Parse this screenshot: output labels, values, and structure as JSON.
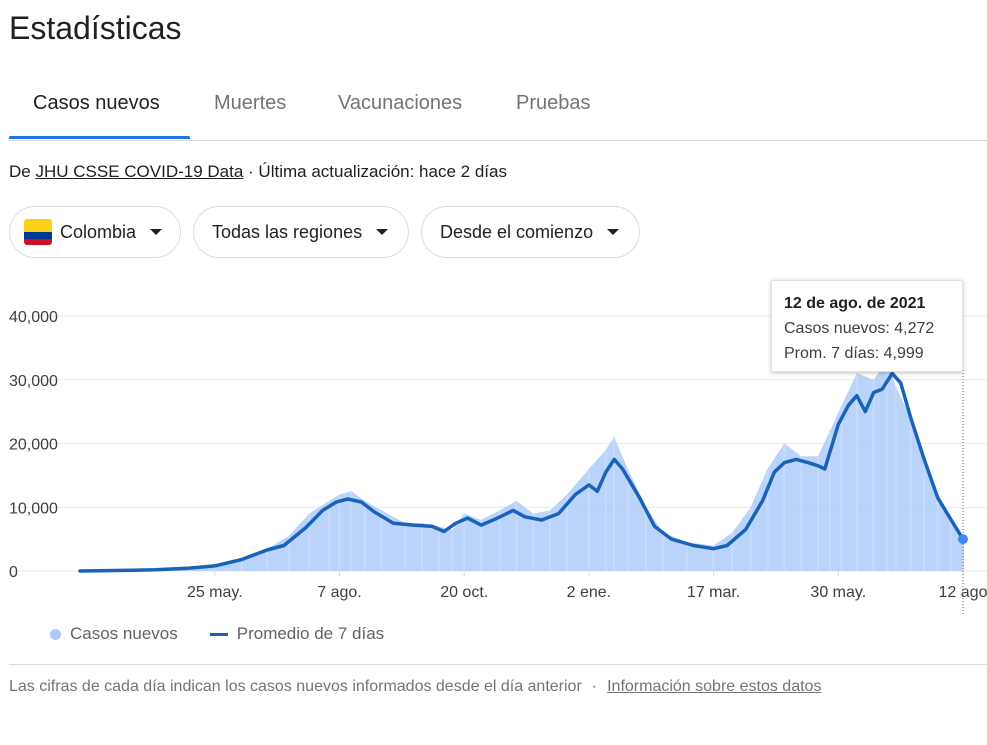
{
  "page": {
    "title": "Estadísticas"
  },
  "tabs": [
    {
      "label": "Casos nuevos",
      "active": true
    },
    {
      "label": "Muertes",
      "active": false
    },
    {
      "label": "Vacunaciones",
      "active": false
    },
    {
      "label": "Pruebas",
      "active": false
    }
  ],
  "source": {
    "prefix": "De",
    "link": "JHU CSSE COVID-19 Data",
    "updated": "· Última actualización: hace 2 días"
  },
  "filters": {
    "country": "Colombia",
    "country_flag_colors": [
      "#fcd116",
      "#003893",
      "#ce1126"
    ],
    "region": "Todas las regiones",
    "period": "Desde el comienzo"
  },
  "colors": {
    "bars": "#aecbfa",
    "area": "#aecbfa",
    "line": "#1a62b8",
    "accent": "#1a73e8"
  },
  "tooltip": {
    "title": "12 de ago. de 2021",
    "new_cases": "Casos nuevos: 4,272",
    "avg": "Prom. 7 días: 4,999"
  },
  "legend": {
    "bars": "Casos nuevos",
    "line": "Promedio de 7 días"
  },
  "footer": {
    "note": "Las cifras de cada día indican los casos nuevos informados desde el día anterior",
    "separator": "·",
    "link": "Información sobre estos datos"
  },
  "chart_data": {
    "type": "bar",
    "x_start": "2020-03-06",
    "x_end": "2021-08-12",
    "ylim": [
      0,
      40000
    ],
    "yticks": [
      0,
      10000,
      20000,
      30000,
      40000
    ],
    "ytick_labels": [
      "0",
      "10,000",
      "20,000",
      "30,000",
      "40,000"
    ],
    "xticks": [
      "2020-05-25",
      "2020-08-07",
      "2020-10-20",
      "2021-01-02",
      "2021-03-17",
      "2021-05-30",
      "2021-08-12"
    ],
    "xtick_labels": [
      "25 may.",
      "7 ago.",
      "20 oct.",
      "2 ene.",
      "17 mar.",
      "30 may.",
      "12 ago"
    ],
    "grid": true,
    "legend_position": "bottom-left",
    "highlight": {
      "x": "2021-08-12",
      "new_cases": 4272,
      "avg": 4999
    },
    "series": [
      {
        "name": "Casos nuevos",
        "kind": "bar",
        "points": [
          [
            "2020-03-06",
            0
          ],
          [
            "2020-04-01",
            120
          ],
          [
            "2020-04-20",
            250
          ],
          [
            "2020-05-10",
            500
          ],
          [
            "2020-05-25",
            900
          ],
          [
            "2020-06-10",
            2000
          ],
          [
            "2020-06-25",
            3500
          ],
          [
            "2020-07-08",
            5500
          ],
          [
            "2020-07-20",
            9000
          ],
          [
            "2020-08-01",
            11000
          ],
          [
            "2020-08-07",
            12000
          ],
          [
            "2020-08-14",
            12500
          ],
          [
            "2020-08-22",
            11000
          ],
          [
            "2020-09-01",
            9500
          ],
          [
            "2020-09-15",
            7500
          ],
          [
            "2020-09-25",
            7500
          ],
          [
            "2020-10-05",
            7000
          ],
          [
            "2020-10-13",
            6500
          ],
          [
            "2020-10-20",
            9000
          ],
          [
            "2020-10-30",
            8000
          ],
          [
            "2020-11-10",
            9500
          ],
          [
            "2020-11-20",
            11000
          ],
          [
            "2020-11-30",
            9000
          ],
          [
            "2020-12-10",
            9500
          ],
          [
            "2020-12-20",
            12000
          ],
          [
            "2021-01-02",
            16000
          ],
          [
            "2021-01-12",
            19000
          ],
          [
            "2021-01-17",
            21000
          ],
          [
            "2021-01-25",
            16000
          ],
          [
            "2021-02-05",
            10000
          ],
          [
            "2021-02-15",
            6000
          ],
          [
            "2021-03-01",
            4500
          ],
          [
            "2021-03-17",
            4000
          ],
          [
            "2021-03-28",
            6000
          ],
          [
            "2021-04-08",
            10000
          ],
          [
            "2021-04-18",
            16000
          ],
          [
            "2021-04-28",
            20000
          ],
          [
            "2021-05-08",
            18000
          ],
          [
            "2021-05-18",
            18000
          ],
          [
            "2021-05-25",
            22000
          ],
          [
            "2021-06-01",
            26000
          ],
          [
            "2021-06-10",
            31000
          ],
          [
            "2021-06-20",
            30000
          ],
          [
            "2021-06-28",
            33000
          ],
          [
            "2021-07-03",
            29000
          ],
          [
            "2021-07-12",
            24000
          ],
          [
            "2021-07-20",
            18000
          ],
          [
            "2021-07-28",
            12000
          ],
          [
            "2021-08-05",
            8000
          ],
          [
            "2021-08-12",
            4272
          ]
        ]
      },
      {
        "name": "Promedio de 7 días",
        "kind": "line",
        "points": [
          [
            "2020-03-06",
            0
          ],
          [
            "2020-04-01",
            100
          ],
          [
            "2020-04-20",
            200
          ],
          [
            "2020-05-10",
            450
          ],
          [
            "2020-05-25",
            800
          ],
          [
            "2020-06-10",
            1800
          ],
          [
            "2020-06-25",
            3300
          ],
          [
            "2020-07-05",
            4000
          ],
          [
            "2020-07-18",
            6800
          ],
          [
            "2020-07-28",
            9500
          ],
          [
            "2020-08-05",
            10800
          ],
          [
            "2020-08-12",
            11300
          ],
          [
            "2020-08-20",
            10800
          ],
          [
            "2020-08-28",
            9200
          ],
          [
            "2020-09-08",
            7500
          ],
          [
            "2020-09-20",
            7200
          ],
          [
            "2020-10-01",
            7000
          ],
          [
            "2020-10-08",
            6200
          ],
          [
            "2020-10-15",
            7500
          ],
          [
            "2020-10-22",
            8300
          ],
          [
            "2020-10-30",
            7200
          ],
          [
            "2020-11-08",
            8200
          ],
          [
            "2020-11-18",
            9500
          ],
          [
            "2020-11-25",
            8500
          ],
          [
            "2020-12-05",
            8000
          ],
          [
            "2020-12-15",
            9000
          ],
          [
            "2020-12-25",
            12000
          ],
          [
            "2021-01-02",
            13500
          ],
          [
            "2021-01-07",
            12500
          ],
          [
            "2021-01-12",
            15500
          ],
          [
            "2021-01-17",
            17500
          ],
          [
            "2021-01-22",
            16000
          ],
          [
            "2021-02-01",
            11500
          ],
          [
            "2021-02-10",
            7000
          ],
          [
            "2021-02-20",
            5000
          ],
          [
            "2021-03-05",
            4000
          ],
          [
            "2021-03-17",
            3500
          ],
          [
            "2021-03-25",
            4000
          ],
          [
            "2021-04-05",
            6500
          ],
          [
            "2021-04-15",
            11000
          ],
          [
            "2021-04-22",
            15500
          ],
          [
            "2021-04-28",
            17000
          ],
          [
            "2021-05-05",
            17500
          ],
          [
            "2021-05-12",
            17000
          ],
          [
            "2021-05-18",
            16500
          ],
          [
            "2021-05-22",
            16000
          ],
          [
            "2021-05-30",
            23000
          ],
          [
            "2021-06-05",
            26000
          ],
          [
            "2021-06-10",
            27500
          ],
          [
            "2021-06-15",
            25000
          ],
          [
            "2021-06-20",
            28000
          ],
          [
            "2021-06-25",
            28500
          ],
          [
            "2021-07-01",
            31000
          ],
          [
            "2021-07-06",
            29500
          ],
          [
            "2021-07-12",
            24000
          ],
          [
            "2021-07-20",
            17500
          ],
          [
            "2021-07-28",
            11500
          ],
          [
            "2021-08-05",
            8000
          ],
          [
            "2021-08-12",
            4999
          ]
        ]
      }
    ]
  }
}
